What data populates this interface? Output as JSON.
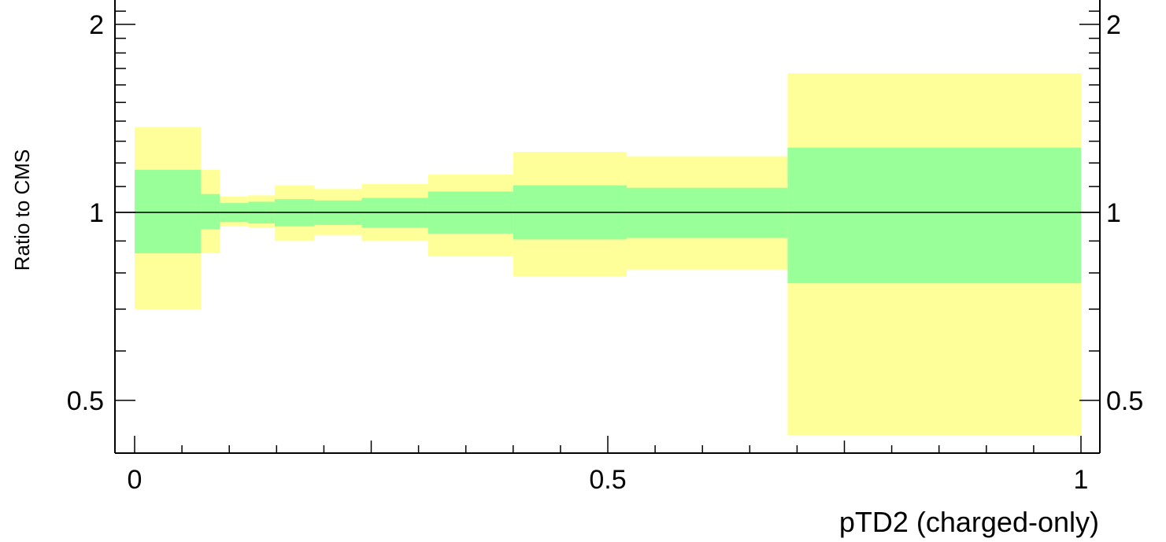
{
  "chart_data": {
    "type": "area",
    "title": "",
    "xlabel": "pTD2 (charged-only)",
    "ylabel": "Ratio to CMS",
    "xlim": [
      -0.01,
      1.01
    ],
    "ylim": [
      0.42,
      2.3
    ],
    "y_scale": "log",
    "grid": false,
    "y_tick_labels": [
      {
        "value": 0.5,
        "label": "0.5"
      },
      {
        "value": 1,
        "label": "1"
      },
      {
        "value": 2,
        "label": "2"
      }
    ],
    "x_tick_labels": [
      {
        "value": 0,
        "label": "0"
      },
      {
        "value": 0.5,
        "label": "0.5"
      },
      {
        "value": 1,
        "label": "1"
      }
    ],
    "reference_line": 1,
    "bins": [
      {
        "x_low": 0.0,
        "x_high": 0.07,
        "inner": [
          0.86,
          1.17
        ],
        "outer": [
          0.7,
          1.37
        ]
      },
      {
        "x_low": 0.07,
        "x_high": 0.09,
        "inner": [
          0.94,
          1.07
        ],
        "outer": [
          0.86,
          1.17
        ]
      },
      {
        "x_low": 0.09,
        "x_high": 0.12,
        "inner": [
          0.965,
          1.035
        ],
        "outer": [
          0.95,
          1.06
        ]
      },
      {
        "x_low": 0.12,
        "x_high": 0.148,
        "inner": [
          0.96,
          1.04
        ],
        "outer": [
          0.945,
          1.065
        ]
      },
      {
        "x_low": 0.148,
        "x_high": 0.19,
        "inner": [
          0.95,
          1.05
        ],
        "outer": [
          0.9,
          1.105
        ]
      },
      {
        "x_low": 0.19,
        "x_high": 0.24,
        "inner": [
          0.955,
          1.045
        ],
        "outer": [
          0.92,
          1.09
        ]
      },
      {
        "x_low": 0.24,
        "x_high": 0.31,
        "inner": [
          0.945,
          1.055
        ],
        "outer": [
          0.9,
          1.11
        ]
      },
      {
        "x_low": 0.31,
        "x_high": 0.4,
        "inner": [
          0.925,
          1.08
        ],
        "outer": [
          0.85,
          1.15
        ]
      },
      {
        "x_low": 0.4,
        "x_high": 0.52,
        "inner": [
          0.905,
          1.105
        ],
        "outer": [
          0.79,
          1.25
        ]
      },
      {
        "x_low": 0.52,
        "x_high": 0.69,
        "inner": [
          0.91,
          1.095
        ],
        "outer": [
          0.81,
          1.23
        ]
      },
      {
        "x_low": 0.69,
        "x_high": 1.0,
        "inner": [
          0.77,
          1.27
        ],
        "outer": [
          0.44,
          1.67
        ]
      }
    ],
    "series": [
      {
        "color": "#ffff99"
      },
      {
        "color": "#99ff99"
      }
    ]
  }
}
